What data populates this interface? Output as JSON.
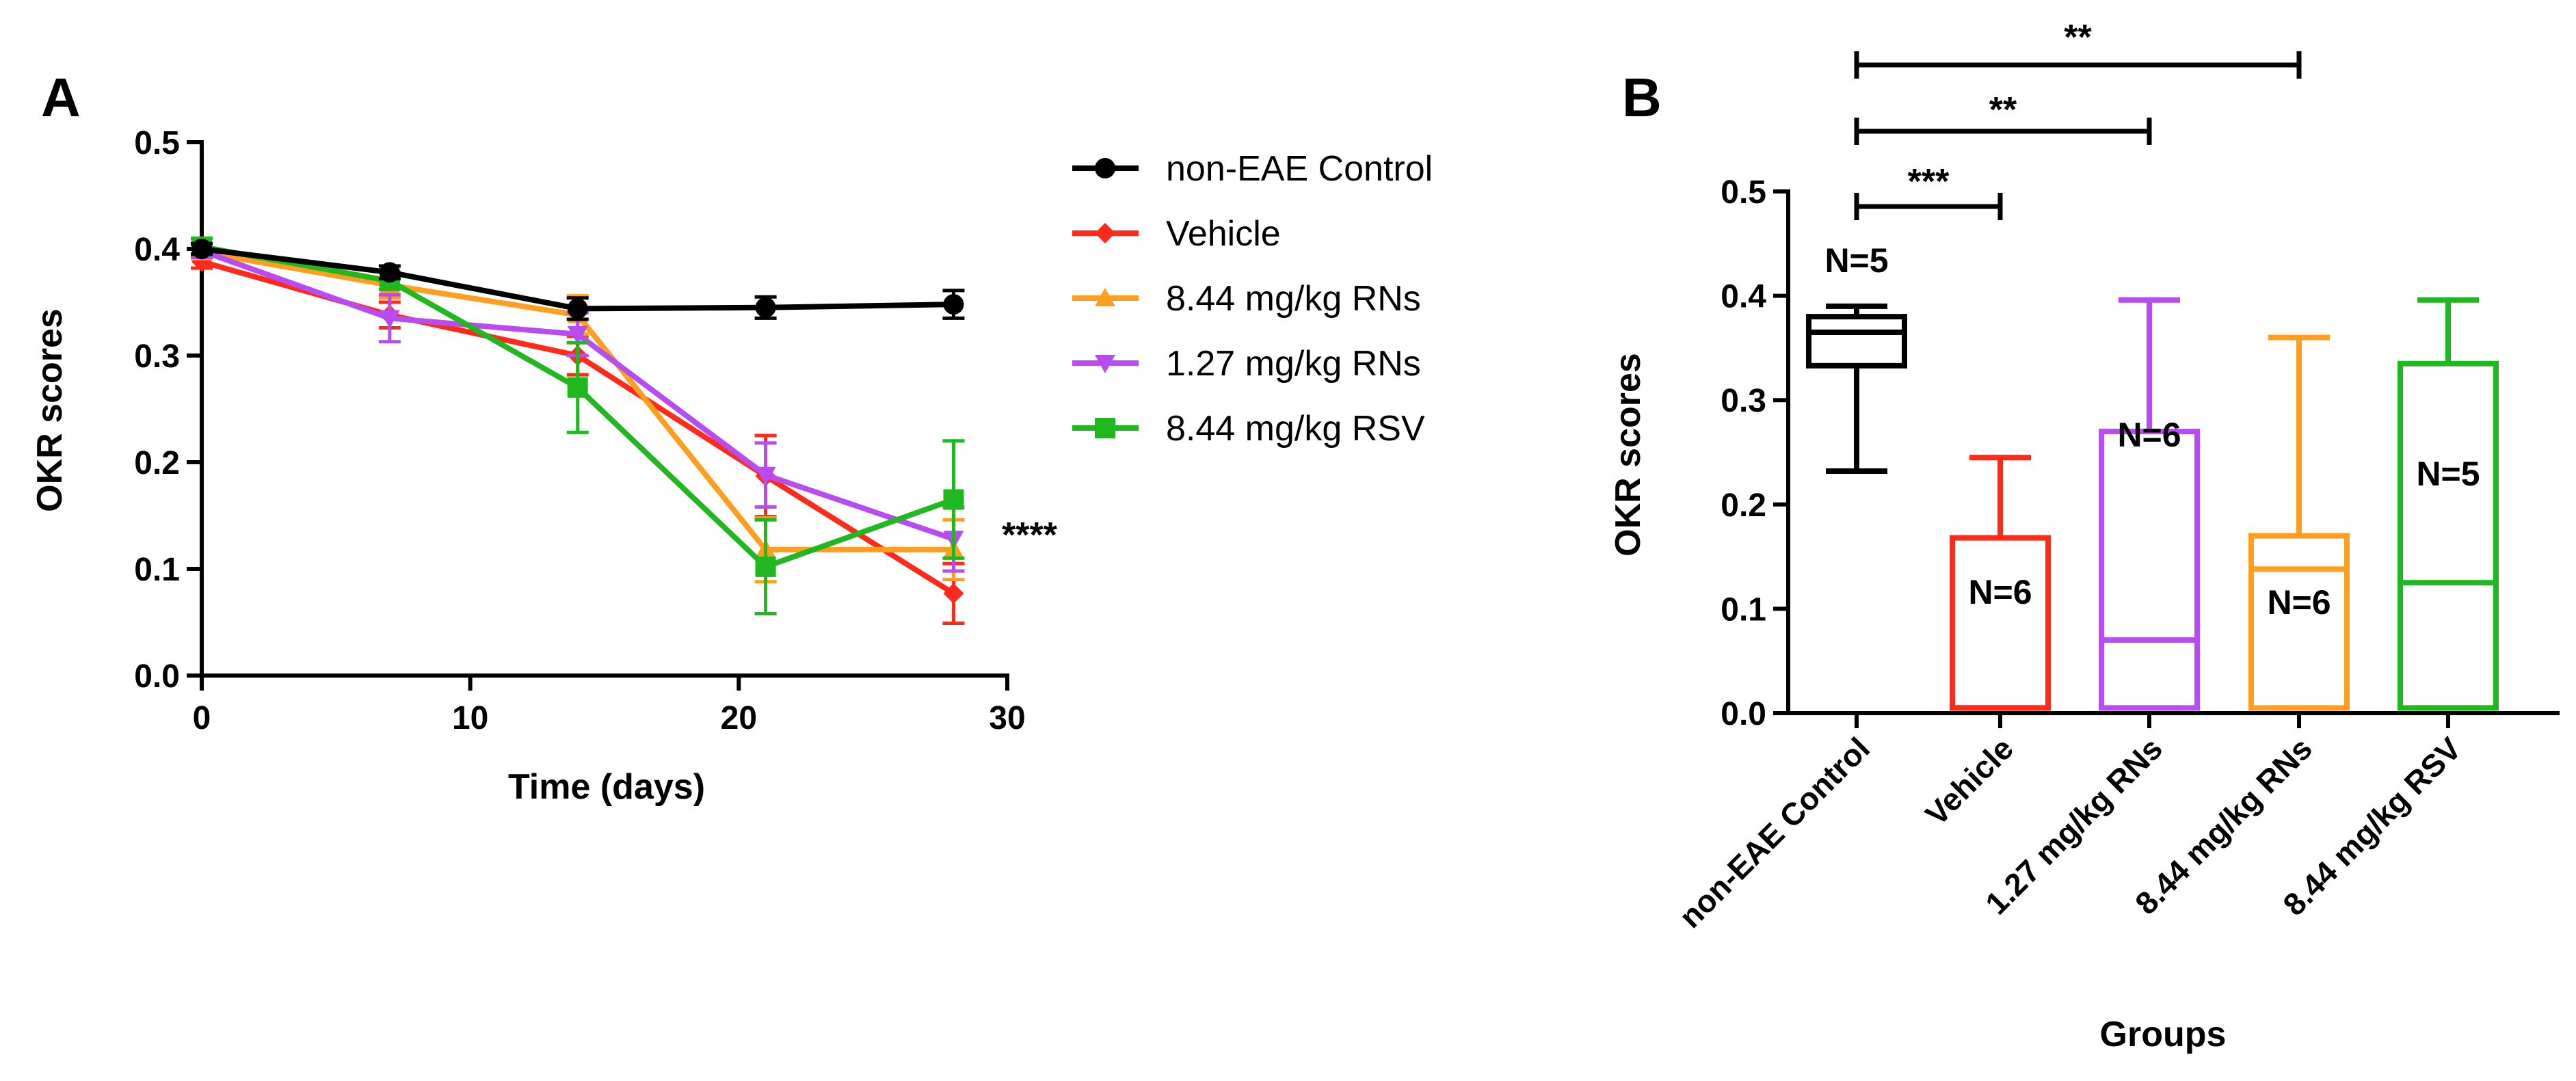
{
  "chart_data": [
    {
      "panel": "A",
      "type": "line",
      "xlabel": "Time (days)",
      "ylabel": "OKR scores",
      "xlim": [
        0,
        30
      ],
      "ylim": [
        0,
        0.5
      ],
      "xticks": [
        0,
        10,
        20,
        30
      ],
      "yticks": [
        0.0,
        0.1,
        0.2,
        0.3,
        0.4,
        0.5
      ],
      "xtick_labels": [
        "0",
        "10",
        "20",
        "30"
      ],
      "ytick_labels": [
        "0.0",
        "0.1",
        "0.2",
        "0.3",
        "0.4",
        "0.5"
      ],
      "x": [
        0,
        7,
        14,
        21,
        28
      ],
      "legend_position": "right",
      "significance": "****",
      "series": [
        {
          "name": "non-EAE Control",
          "color": "#000000",
          "marker": "circle",
          "values": [
            0.4,
            0.378,
            0.344,
            0.345,
            0.348
          ],
          "err": [
            0.005,
            0.006,
            0.01,
            0.01,
            0.013
          ]
        },
        {
          "name": "Vehicle",
          "color": "#ff2a1a",
          "marker": "diamond",
          "values": [
            0.388,
            0.338,
            0.3,
            0.187,
            0.077
          ],
          "err": [
            0.006,
            0.012,
            0.018,
            0.038,
            0.028
          ]
        },
        {
          "name": "8.44 mg/kg RNs",
          "color": "#ff9e1f",
          "marker": "triangle-up",
          "values": [
            0.397,
            0.366,
            0.338,
            0.118,
            0.118
          ],
          "err": [
            0.006,
            0.012,
            0.018,
            0.03,
            0.028
          ]
        },
        {
          "name": "1.27 mg/kg RNs",
          "color": "#b84cf2",
          "marker": "triangle-down",
          "values": [
            0.398,
            0.335,
            0.32,
            0.188,
            0.128
          ],
          "err": [
            0.006,
            0.022,
            0.02,
            0.03,
            0.03
          ]
        },
        {
          "name": "8.44 mg/kg RSV",
          "color": "#1fb81f",
          "marker": "square",
          "values": [
            0.402,
            0.37,
            0.27,
            0.102,
            0.165
          ],
          "err": [
            0.008,
            0.008,
            0.042,
            0.044,
            0.055
          ]
        }
      ]
    },
    {
      "panel": "B",
      "type": "box",
      "xlabel": "Groups",
      "ylabel": "OKR scores",
      "ylim": [
        0,
        0.5
      ],
      "yticks": [
        0.0,
        0.1,
        0.2,
        0.3,
        0.4,
        0.5
      ],
      "ytick_labels": [
        "0.0",
        "0.1",
        "0.2",
        "0.3",
        "0.4",
        "0.5"
      ],
      "groups": [
        {
          "name": "non-EAE Control",
          "color": "#000000",
          "n_label": "N=5",
          "min": 0.232,
          "q1": 0.333,
          "median": 0.365,
          "q3": 0.38,
          "max": 0.39
        },
        {
          "name": "Vehicle",
          "color": "#ff2a1a",
          "n_label": "N=6",
          "min": 0.005,
          "q1": 0.005,
          "median": 0.005,
          "q3": 0.168,
          "max": 0.245
        },
        {
          "name": "1.27 mg/kg RNs",
          "color": "#b84cf2",
          "n_label": "N=6",
          "min": 0.005,
          "q1": 0.005,
          "median": 0.07,
          "q3": 0.27,
          "max": 0.396
        },
        {
          "name": "8.44 mg/kg RNs",
          "color": "#ff9e1f",
          "n_label": "N=6",
          "min": 0.005,
          "q1": 0.005,
          "median": 0.138,
          "q3": 0.17,
          "max": 0.36
        },
        {
          "name": "8.44 mg/kg RSV",
          "color": "#1fb81f",
          "n_label": "N=5",
          "min": 0.005,
          "q1": 0.005,
          "median": 0.125,
          "q3": 0.335,
          "max": 0.396
        }
      ],
      "comparisons": [
        {
          "from": 0,
          "to": 1,
          "label": "***"
        },
        {
          "from": 0,
          "to": 2,
          "label": "**"
        },
        {
          "from": 0,
          "to": 3,
          "label": "**"
        }
      ]
    }
  ]
}
